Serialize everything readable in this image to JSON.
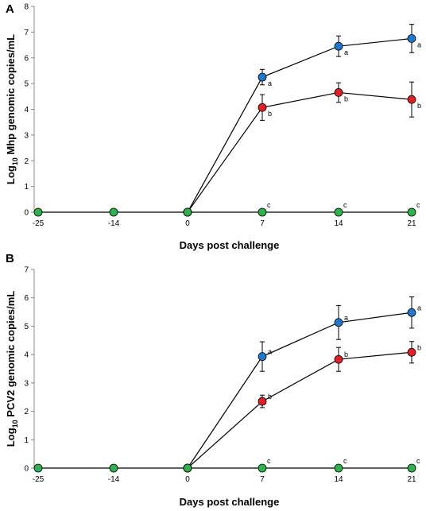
{
  "chart_data": [
    {
      "panel": "A",
      "type": "line",
      "ylabel_base": "Log",
      "ylabel_sub": "10",
      "ylabel_rest": " Mhp genomic copies/mL",
      "xlabel": "Days post challenge",
      "categories": [
        "-25",
        "-14",
        "0",
        "7",
        "14",
        "21"
      ],
      "ylim": [
        0,
        8
      ],
      "yticks": [
        "0",
        "1",
        "2",
        "3",
        "4",
        "5",
        "6",
        "7",
        "8"
      ],
      "series": [
        {
          "color": "#1f78d0",
          "values": [
            null,
            null,
            0,
            5.25,
            6.45,
            6.75
          ],
          "errors": [
            null,
            null,
            0,
            0.3,
            0.4,
            0.55
          ],
          "letters": [
            "",
            "",
            "",
            "a",
            "a",
            "a"
          ]
        },
        {
          "color": "#e31e24",
          "values": [
            null,
            null,
            0,
            4.07,
            4.65,
            4.38
          ],
          "errors": [
            null,
            null,
            0,
            0.5,
            0.38,
            0.68
          ],
          "letters": [
            "",
            "",
            "",
            "b",
            "b",
            "b"
          ]
        },
        {
          "color": "#2db34a",
          "values": [
            0,
            0,
            0,
            0,
            0,
            0
          ],
          "errors": [
            null,
            null,
            null,
            null,
            null,
            null
          ],
          "letters": [
            "",
            "",
            "",
            "c",
            "c",
            "c"
          ]
        }
      ]
    },
    {
      "panel": "B",
      "type": "line",
      "ylabel_base": "Log",
      "ylabel_sub": "10",
      "ylabel_rest": " PCV2 genomic copies/mL",
      "xlabel": "Days post challenge",
      "categories": [
        "-25",
        "-14",
        "0",
        "7",
        "14",
        "21"
      ],
      "ylim": [
        0,
        7
      ],
      "yticks": [
        "0",
        "1",
        "2",
        "3",
        "4",
        "5",
        "6",
        "7"
      ],
      "series": [
        {
          "color": "#1f78d0",
          "values": [
            null,
            null,
            0,
            3.93,
            5.13,
            5.48
          ],
          "errors": [
            null,
            null,
            0,
            0.52,
            0.6,
            0.55
          ],
          "letters": [
            "",
            "",
            "",
            "a",
            "a",
            "a"
          ]
        },
        {
          "color": "#e31e24",
          "values": [
            null,
            null,
            0,
            2.35,
            3.83,
            4.08
          ],
          "errors": [
            null,
            null,
            0,
            0.22,
            0.42,
            0.38
          ],
          "letters": [
            "",
            "",
            "",
            "b",
            "b",
            "b"
          ]
        },
        {
          "color": "#2db34a",
          "values": [
            0,
            0,
            0,
            0,
            0,
            0
          ],
          "errors": [
            null,
            null,
            null,
            null,
            null,
            null
          ],
          "letters": [
            "",
            "",
            "",
            "c",
            "c",
            "c"
          ]
        }
      ]
    }
  ]
}
